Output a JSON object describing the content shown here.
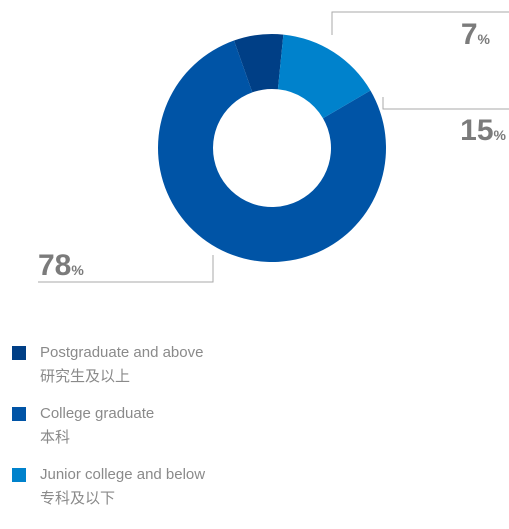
{
  "chart_data": {
    "type": "pie",
    "variant": "donut",
    "categories": [
      {
        "en": "Postgraduate and above",
        "zh": "研究生及以上"
      },
      {
        "en": "College graduate",
        "zh": "本科"
      },
      {
        "en": "Junior college and below",
        "zh": "专科及以下"
      }
    ],
    "values": [
      7,
      78,
      15
    ],
    "unit": "%",
    "colors": [
      "#003f86",
      "#0054a6",
      "#0082cc"
    ],
    "legend_position": "bottom-left"
  },
  "legend": [
    {
      "en": "Postgraduate and above",
      "zh": "研究生及以上",
      "color": "#003f86"
    },
    {
      "en": "College graduate",
      "zh": "本科",
      "color": "#0054a6"
    },
    {
      "en": "Junior college and below",
      "zh": "专科及以下",
      "color": "#0082cc"
    }
  ],
  "labels": {
    "postgrad_value": "7",
    "junior_value": "15",
    "college_value": "78",
    "percent_sign": "%"
  }
}
